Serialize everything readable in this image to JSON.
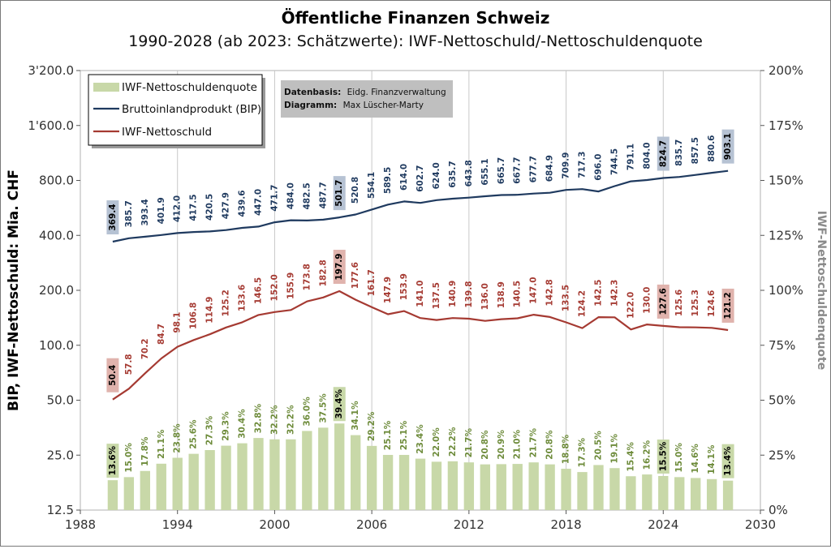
{
  "chart_data": {
    "type": "bar+line",
    "title": "Öffentliche Finanzen Schweiz",
    "subtitle": "1990-2028 (ab 2023: Schätzwerte): IWF-Nettoschuld/-Nettoschuldenquote",
    "ylabel_left": "BIP, IWF-Nettoschuld: Mia. CHF",
    "ylabel_right": "IWF-Nettoschuldenquote",
    "y_left_scale": "log2",
    "ylim_left": [
      12.5,
      3200
    ],
    "y_left_ticks": [
      "12.5",
      "25.0",
      "50.0",
      "100.0",
      "200.0",
      "400.0",
      "800.0",
      "1'600.0",
      "3'200.0"
    ],
    "ylim_right": [
      0,
      200
    ],
    "y_right_ticks": [
      "0%",
      "25%",
      "50%",
      "75%",
      "100%",
      "125%",
      "150%",
      "175%",
      "200%"
    ],
    "xlim": [
      1988,
      2030
    ],
    "x_ticks": [
      "1988",
      "1994",
      "2000",
      "2006",
      "2012",
      "2018",
      "2024",
      "2030"
    ],
    "grid": "vertical",
    "legend_position": "top-left",
    "years": [
      1990,
      1991,
      1992,
      1993,
      1994,
      1995,
      1996,
      1997,
      1998,
      1999,
      2000,
      2001,
      2002,
      2003,
      2004,
      2005,
      2006,
      2007,
      2008,
      2009,
      2010,
      2011,
      2012,
      2013,
      2014,
      2015,
      2016,
      2017,
      2018,
      2019,
      2020,
      2021,
      2022,
      2023,
      2024,
      2025,
      2026,
      2027,
      2028
    ],
    "series": [
      {
        "name": "IWF-Nettoschuldenquote",
        "type": "bar",
        "axis": "right",
        "color": "#c8d8a8",
        "label_color": "#6d8b3a",
        "values": [
          13.6,
          15.0,
          17.8,
          21.1,
          23.8,
          25.6,
          27.3,
          29.3,
          30.4,
          32.8,
          32.2,
          32.2,
          36.0,
          37.5,
          39.4,
          34.1,
          29.2,
          25.1,
          25.1,
          23.4,
          22.0,
          22.2,
          21.7,
          20.8,
          20.9,
          21.0,
          21.7,
          20.8,
          18.8,
          17.3,
          20.5,
          19.1,
          15.4,
          16.2,
          15.5,
          15.0,
          14.6,
          14.1,
          13.4
        ],
        "labels": [
          "13.6%",
          "15.0%",
          "17.8%",
          "21.1%",
          "23.8%",
          "25.6%",
          "27.3%",
          "29.3%",
          "30.4%",
          "32.8%",
          "32.2%",
          "32.2%",
          "36.0%",
          "37.5%",
          "39.4%",
          "34.1%",
          "29.2%",
          "25.1%",
          "25.1%",
          "23.4%",
          "22.0%",
          "22.2%",
          "21.7%",
          "20.8%",
          "20.9%",
          "21.0%",
          "21.7%",
          "20.8%",
          "18.8%",
          "17.3%",
          "20.5%",
          "19.1%",
          "15.4%",
          "16.2%",
          "15.5%",
          "15.0%",
          "14.6%",
          "14.1%",
          "13.4%"
        ]
      },
      {
        "name": "Bruttoinlandprodukt (BIP)",
        "type": "line",
        "axis": "left",
        "color": "#1f3a5f",
        "label_color": "#1f3a5f",
        "values": [
          369.4,
          385.7,
          393.4,
          401.9,
          412.0,
          417.5,
          420.5,
          427.9,
          439.6,
          447.0,
          471.7,
          484.0,
          482.5,
          487.7,
          501.7,
          520.8,
          554.1,
          589.5,
          614.0,
          602.7,
          624.0,
          635.7,
          643.8,
          655.1,
          665.7,
          667.7,
          677.7,
          684.9,
          709.9,
          717.3,
          696.0,
          744.5,
          791.1,
          804.0,
          824.7,
          835.7,
          857.5,
          880.6,
          903.1
        ],
        "labels": [
          "369.4",
          "385.7",
          "393.4",
          "401.9",
          "412.0",
          "417.5",
          "420.5",
          "427.9",
          "439.6",
          "447.0",
          "471.7",
          "484.0",
          "482.5",
          "487.7",
          "501.7",
          "520.8",
          "554.1",
          "589.5",
          "614.0",
          "602.7",
          "624.0",
          "635.7",
          "643.8",
          "655.1",
          "665.7",
          "667.7",
          "677.7",
          "684.9",
          "709.9",
          "717.3",
          "696.0",
          "744.5",
          "791.1",
          "804.0",
          "824.7",
          "835.7",
          "857.5",
          "880.6",
          "903.1"
        ]
      },
      {
        "name": "IWF-Nettoschuld",
        "type": "line",
        "axis": "left",
        "color": "#a53a32",
        "label_color": "#a53a32",
        "values": [
          50.4,
          57.8,
          70.2,
          84.7,
          98.1,
          106.8,
          114.9,
          125.2,
          133.6,
          146.5,
          152.0,
          155.9,
          173.8,
          182.8,
          197.9,
          177.6,
          161.7,
          147.9,
          153.9,
          141.0,
          137.5,
          140.9,
          139.8,
          136.0,
          138.9,
          140.5,
          147.0,
          142.8,
          133.5,
          124.2,
          142.5,
          142.3,
          122.0,
          130.0,
          127.6,
          125.6,
          125.3,
          124.6,
          121.2
        ],
        "labels": [
          "50.4",
          "57.8",
          "70.2",
          "84.7",
          "98.1",
          "106.8",
          "114.9",
          "125.2",
          "133.6",
          "146.5",
          "152.0",
          "155.9",
          "173.8",
          "182.8",
          "197.9",
          "177.6",
          "161.7",
          "147.9",
          "153.9",
          "141.0",
          "137.5",
          "140.9",
          "139.8",
          "136.0",
          "138.9",
          "140.5",
          "147.0",
          "142.8",
          "133.5",
          "124.2",
          "142.5",
          "142.3",
          "122.0",
          "130.0",
          "127.6",
          "125.6",
          "125.3",
          "124.6",
          "121.2"
        ]
      }
    ],
    "highlight_years": [
      1990,
      2004,
      2024,
      2028
    ],
    "highlight_colors": {
      "IWF-Nettoschuldenquote": "#c8d8a8",
      "Bruttoinlandprodukt (BIP)": "#b6c2d3",
      "IWF-Nettoschuld": "#e0b3ad"
    },
    "source_box": {
      "line1_bold": "Datenbasis:",
      "line1_text": "Eidg. Finanzverwaltung",
      "line2_bold": "Diagramm:",
      "line2_text": "Max Lüscher-Marty",
      "background": "#bfbfbf"
    }
  }
}
